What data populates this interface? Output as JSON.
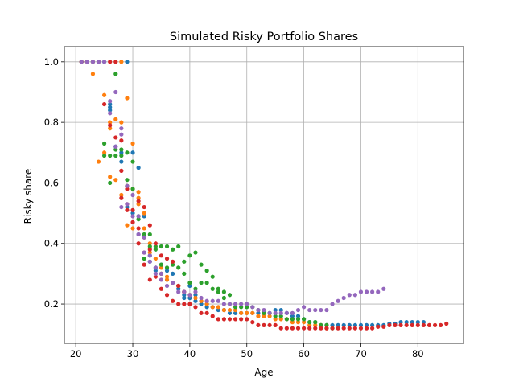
{
  "chart_data": {
    "type": "scatter",
    "title": "Simulated Risky Portfolio Shares",
    "xlabel": "Age",
    "ylabel": "Risky share",
    "xlim": [
      18,
      88
    ],
    "ylim": [
      0.07,
      1.05
    ],
    "xticks": [
      20,
      30,
      40,
      50,
      60,
      70,
      80
    ],
    "yticks": [
      0.2,
      0.4,
      0.6,
      0.8,
      1.0
    ],
    "xtick_labels": [
      "20",
      "30",
      "40",
      "50",
      "60",
      "70",
      "80"
    ],
    "ytick_labels": [
      "0.2",
      "0.4",
      "0.6",
      "0.8",
      "1.0"
    ],
    "grid": true,
    "series": [
      {
        "color": "#1f77b4",
        "x": [
          21,
          22,
          23,
          24,
          25,
          26,
          26,
          26,
          27,
          28,
          28,
          29,
          29,
          30,
          30,
          31,
          31,
          32,
          32,
          33,
          33,
          34,
          34,
          35,
          35,
          36,
          36,
          37,
          37,
          38,
          38,
          39,
          39,
          40,
          40,
          41,
          41,
          42,
          42,
          43,
          43,
          44,
          45,
          46,
          47,
          48,
          49,
          50,
          51,
          52,
          53,
          54,
          55,
          56,
          57,
          58,
          59,
          60,
          61,
          62,
          63,
          64,
          65,
          66,
          67,
          68,
          69,
          70,
          71,
          72,
          73,
          74,
          75,
          76,
          77,
          78,
          79,
          80,
          81
        ],
        "y": [
          1.0,
          1.0,
          1.0,
          1.0,
          1.0,
          0.86,
          0.85,
          0.84,
          0.72,
          0.7,
          0.67,
          1.0,
          0.52,
          0.7,
          0.5,
          0.65,
          0.43,
          0.49,
          0.42,
          0.36,
          0.34,
          0.32,
          0.31,
          0.33,
          0.3,
          0.31,
          0.28,
          0.3,
          0.27,
          0.26,
          0.25,
          0.23,
          0.22,
          0.26,
          0.22,
          0.23,
          0.21,
          0.21,
          0.2,
          0.2,
          0.19,
          0.19,
          0.18,
          0.18,
          0.17,
          0.17,
          0.17,
          0.17,
          0.17,
          0.17,
          0.17,
          0.17,
          0.18,
          0.18,
          0.17,
          0.16,
          0.16,
          0.15,
          0.14,
          0.14,
          0.13,
          0.13,
          0.13,
          0.13,
          0.13,
          0.13,
          0.13,
          0.13,
          0.13,
          0.13,
          0.13,
          0.13,
          0.135,
          0.135,
          0.14,
          0.14,
          0.14,
          0.14,
          0.14
        ]
      },
      {
        "color": "#ff7f0e",
        "x": [
          21,
          22,
          23,
          24,
          24,
          25,
          25,
          26,
          26,
          26,
          27,
          27,
          28,
          28,
          28,
          29,
          29,
          29,
          30,
          30,
          30,
          31,
          31,
          31,
          32,
          32,
          32,
          33,
          33,
          34,
          35,
          35,
          36,
          36,
          37,
          38,
          39,
          40,
          41,
          42,
          43,
          44,
          45,
          46,
          47,
          48,
          49,
          50,
          51,
          52,
          53,
          54,
          55,
          56,
          57,
          58,
          59,
          60,
          61,
          62,
          63,
          64
        ],
        "y": [
          1.0,
          1.0,
          0.96,
          0.67,
          1.0,
          0.89,
          0.7,
          0.8,
          0.78,
          0.62,
          0.61,
          0.81,
          1.0,
          0.8,
          0.56,
          0.88,
          0.59,
          0.46,
          0.73,
          0.58,
          0.45,
          0.57,
          0.55,
          0.53,
          0.5,
          0.45,
          0.42,
          0.4,
          0.37,
          0.35,
          0.32,
          0.3,
          0.29,
          0.28,
          0.27,
          0.26,
          0.24,
          0.23,
          0.22,
          0.21,
          0.2,
          0.19,
          0.19,
          0.18,
          0.18,
          0.18,
          0.17,
          0.17,
          0.17,
          0.16,
          0.16,
          0.16,
          0.15,
          0.15,
          0.15,
          0.14,
          0.14,
          0.14,
          0.13,
          0.13,
          0.13,
          0.12
        ]
      },
      {
        "color": "#2ca02c",
        "x": [
          21,
          22,
          23,
          24,
          25,
          25,
          26,
          26,
          27,
          27,
          27,
          28,
          28,
          29,
          29,
          29,
          30,
          30,
          31,
          31,
          32,
          32,
          33,
          33,
          34,
          34,
          35,
          35,
          36,
          36,
          37,
          37,
          38,
          38,
          39,
          39,
          40,
          40,
          41,
          41,
          42,
          42,
          43,
          43,
          44,
          44,
          45,
          45,
          46,
          46,
          47,
          47,
          48,
          49,
          50,
          51,
          52,
          53,
          54,
          55,
          56,
          57,
          58,
          59,
          60,
          61,
          62,
          63,
          64,
          65
        ],
        "y": [
          1.0,
          1.0,
          1.0,
          1.0,
          0.73,
          0.69,
          0.69,
          0.6,
          0.96,
          0.69,
          0.71,
          0.71,
          0.69,
          0.7,
          0.61,
          0.59,
          0.58,
          0.67,
          0.49,
          0.48,
          0.43,
          0.35,
          0.43,
          0.39,
          0.38,
          0.39,
          0.39,
          0.33,
          0.39,
          0.32,
          0.38,
          0.33,
          0.39,
          0.32,
          0.34,
          0.3,
          0.36,
          0.27,
          0.37,
          0.25,
          0.33,
          0.27,
          0.31,
          0.27,
          0.29,
          0.25,
          0.25,
          0.24,
          0.24,
          0.22,
          0.23,
          0.2,
          0.19,
          0.19,
          0.19,
          0.19,
          0.18,
          0.17,
          0.17,
          0.16,
          0.16,
          0.15,
          0.15,
          0.15,
          0.15,
          0.14,
          0.14,
          0.13,
          0.13,
          0.12
        ]
      },
      {
        "color": "#d62728",
        "x": [
          21,
          22,
          23,
          24,
          25,
          26,
          26,
          27,
          27,
          28,
          28,
          28,
          29,
          29,
          29,
          30,
          30,
          31,
          31,
          31,
          32,
          32,
          32,
          33,
          33,
          33,
          34,
          34,
          35,
          35,
          36,
          36,
          37,
          37,
          38,
          38,
          39,
          39,
          40,
          41,
          42,
          43,
          44,
          45,
          46,
          47,
          48,
          49,
          50,
          51,
          52,
          53,
          54,
          55,
          56,
          57,
          58,
          59,
          60,
          61,
          62,
          63,
          64,
          65,
          66,
          67,
          68,
          69,
          70,
          71,
          72,
          73,
          74,
          75,
          76,
          77,
          78,
          79,
          80,
          81,
          82,
          83,
          84,
          85
        ],
        "y": [
          1.0,
          1.0,
          1.0,
          1.0,
          0.86,
          1.0,
          0.79,
          1.0,
          0.75,
          0.74,
          0.64,
          0.55,
          0.53,
          0.58,
          0.51,
          0.51,
          0.47,
          0.54,
          0.45,
          0.4,
          0.52,
          0.37,
          0.33,
          0.46,
          0.38,
          0.28,
          0.4,
          0.29,
          0.36,
          0.25,
          0.35,
          0.23,
          0.34,
          0.21,
          0.26,
          0.2,
          0.24,
          0.2,
          0.2,
          0.19,
          0.17,
          0.17,
          0.16,
          0.15,
          0.15,
          0.15,
          0.15,
          0.15,
          0.15,
          0.14,
          0.13,
          0.13,
          0.13,
          0.13,
          0.12,
          0.12,
          0.12,
          0.12,
          0.12,
          0.12,
          0.12,
          0.12,
          0.12,
          0.12,
          0.12,
          0.12,
          0.12,
          0.12,
          0.12,
          0.12,
          0.12,
          0.125,
          0.125,
          0.13,
          0.13,
          0.13,
          0.13,
          0.13,
          0.13,
          0.13,
          0.13,
          0.13,
          0.13,
          0.135
        ]
      },
      {
        "color": "#9467bd",
        "x": [
          21,
          22,
          23,
          24,
          25,
          26,
          26,
          27,
          27,
          28,
          28,
          28,
          29,
          29,
          30,
          30,
          31,
          31,
          32,
          32,
          33,
          33,
          34,
          34,
          35,
          35,
          36,
          37,
          38,
          39,
          40,
          41,
          42,
          43,
          44,
          45,
          46,
          47,
          48,
          49,
          50,
          51,
          52,
          53,
          54,
          55,
          56,
          57,
          58,
          59,
          60,
          61,
          62,
          63,
          64,
          65,
          66,
          67,
          68,
          69,
          70,
          71,
          72,
          73,
          74
        ],
        "y": [
          1.0,
          1.0,
          1.0,
          1.0,
          1.0,
          0.87,
          0.83,
          0.9,
          0.72,
          0.78,
          0.76,
          0.52,
          0.59,
          0.53,
          0.56,
          0.49,
          0.43,
          0.49,
          0.42,
          0.37,
          0.36,
          0.34,
          0.3,
          0.32,
          0.28,
          0.3,
          0.26,
          0.27,
          0.24,
          0.24,
          0.23,
          0.24,
          0.22,
          0.21,
          0.21,
          0.21,
          0.2,
          0.2,
          0.2,
          0.2,
          0.2,
          0.19,
          0.18,
          0.18,
          0.17,
          0.17,
          0.17,
          0.17,
          0.17,
          0.18,
          0.19,
          0.18,
          0.18,
          0.18,
          0.18,
          0.2,
          0.21,
          0.22,
          0.23,
          0.23,
          0.24,
          0.24,
          0.24,
          0.24,
          0.25
        ]
      }
    ]
  }
}
